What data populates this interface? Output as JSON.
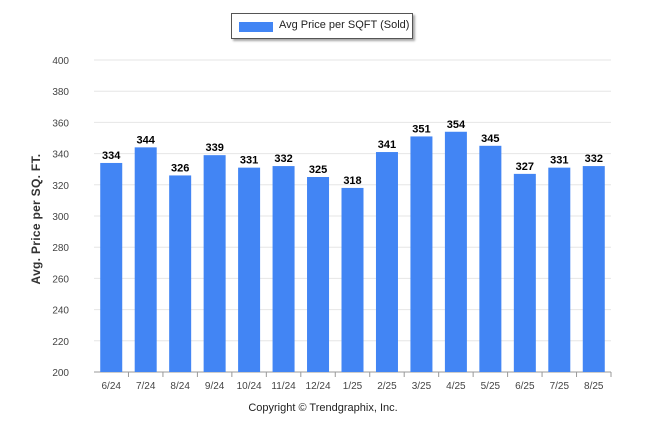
{
  "chart_data": {
    "type": "bar",
    "title": "",
    "xlabel": "",
    "ylabel": "Avg. Price per SQ. FT.",
    "ylim": [
      200,
      400
    ],
    "yticks": [
      200,
      220,
      240,
      260,
      280,
      300,
      320,
      340,
      360,
      380,
      400
    ],
    "grid": true,
    "legend_position": "top-center",
    "categories": [
      "6/24",
      "7/24",
      "8/24",
      "9/24",
      "10/24",
      "11/24",
      "12/24",
      "1/25",
      "2/25",
      "3/25",
      "4/25",
      "5/25",
      "6/25",
      "7/25",
      "8/25"
    ],
    "series": [
      {
        "name": "Avg Price per SQFT (Sold)",
        "color": "#4285f4",
        "values": [
          334,
          344,
          326,
          339,
          331,
          332,
          325,
          318,
          341,
          351,
          354,
          345,
          327,
          331,
          332
        ]
      }
    ]
  },
  "footer": {
    "credit": "Copyright © Trendgraphix, Inc."
  },
  "colors": {
    "bar": "#4285f4",
    "grid": "#e6e6e6",
    "axis": "#999999"
  }
}
